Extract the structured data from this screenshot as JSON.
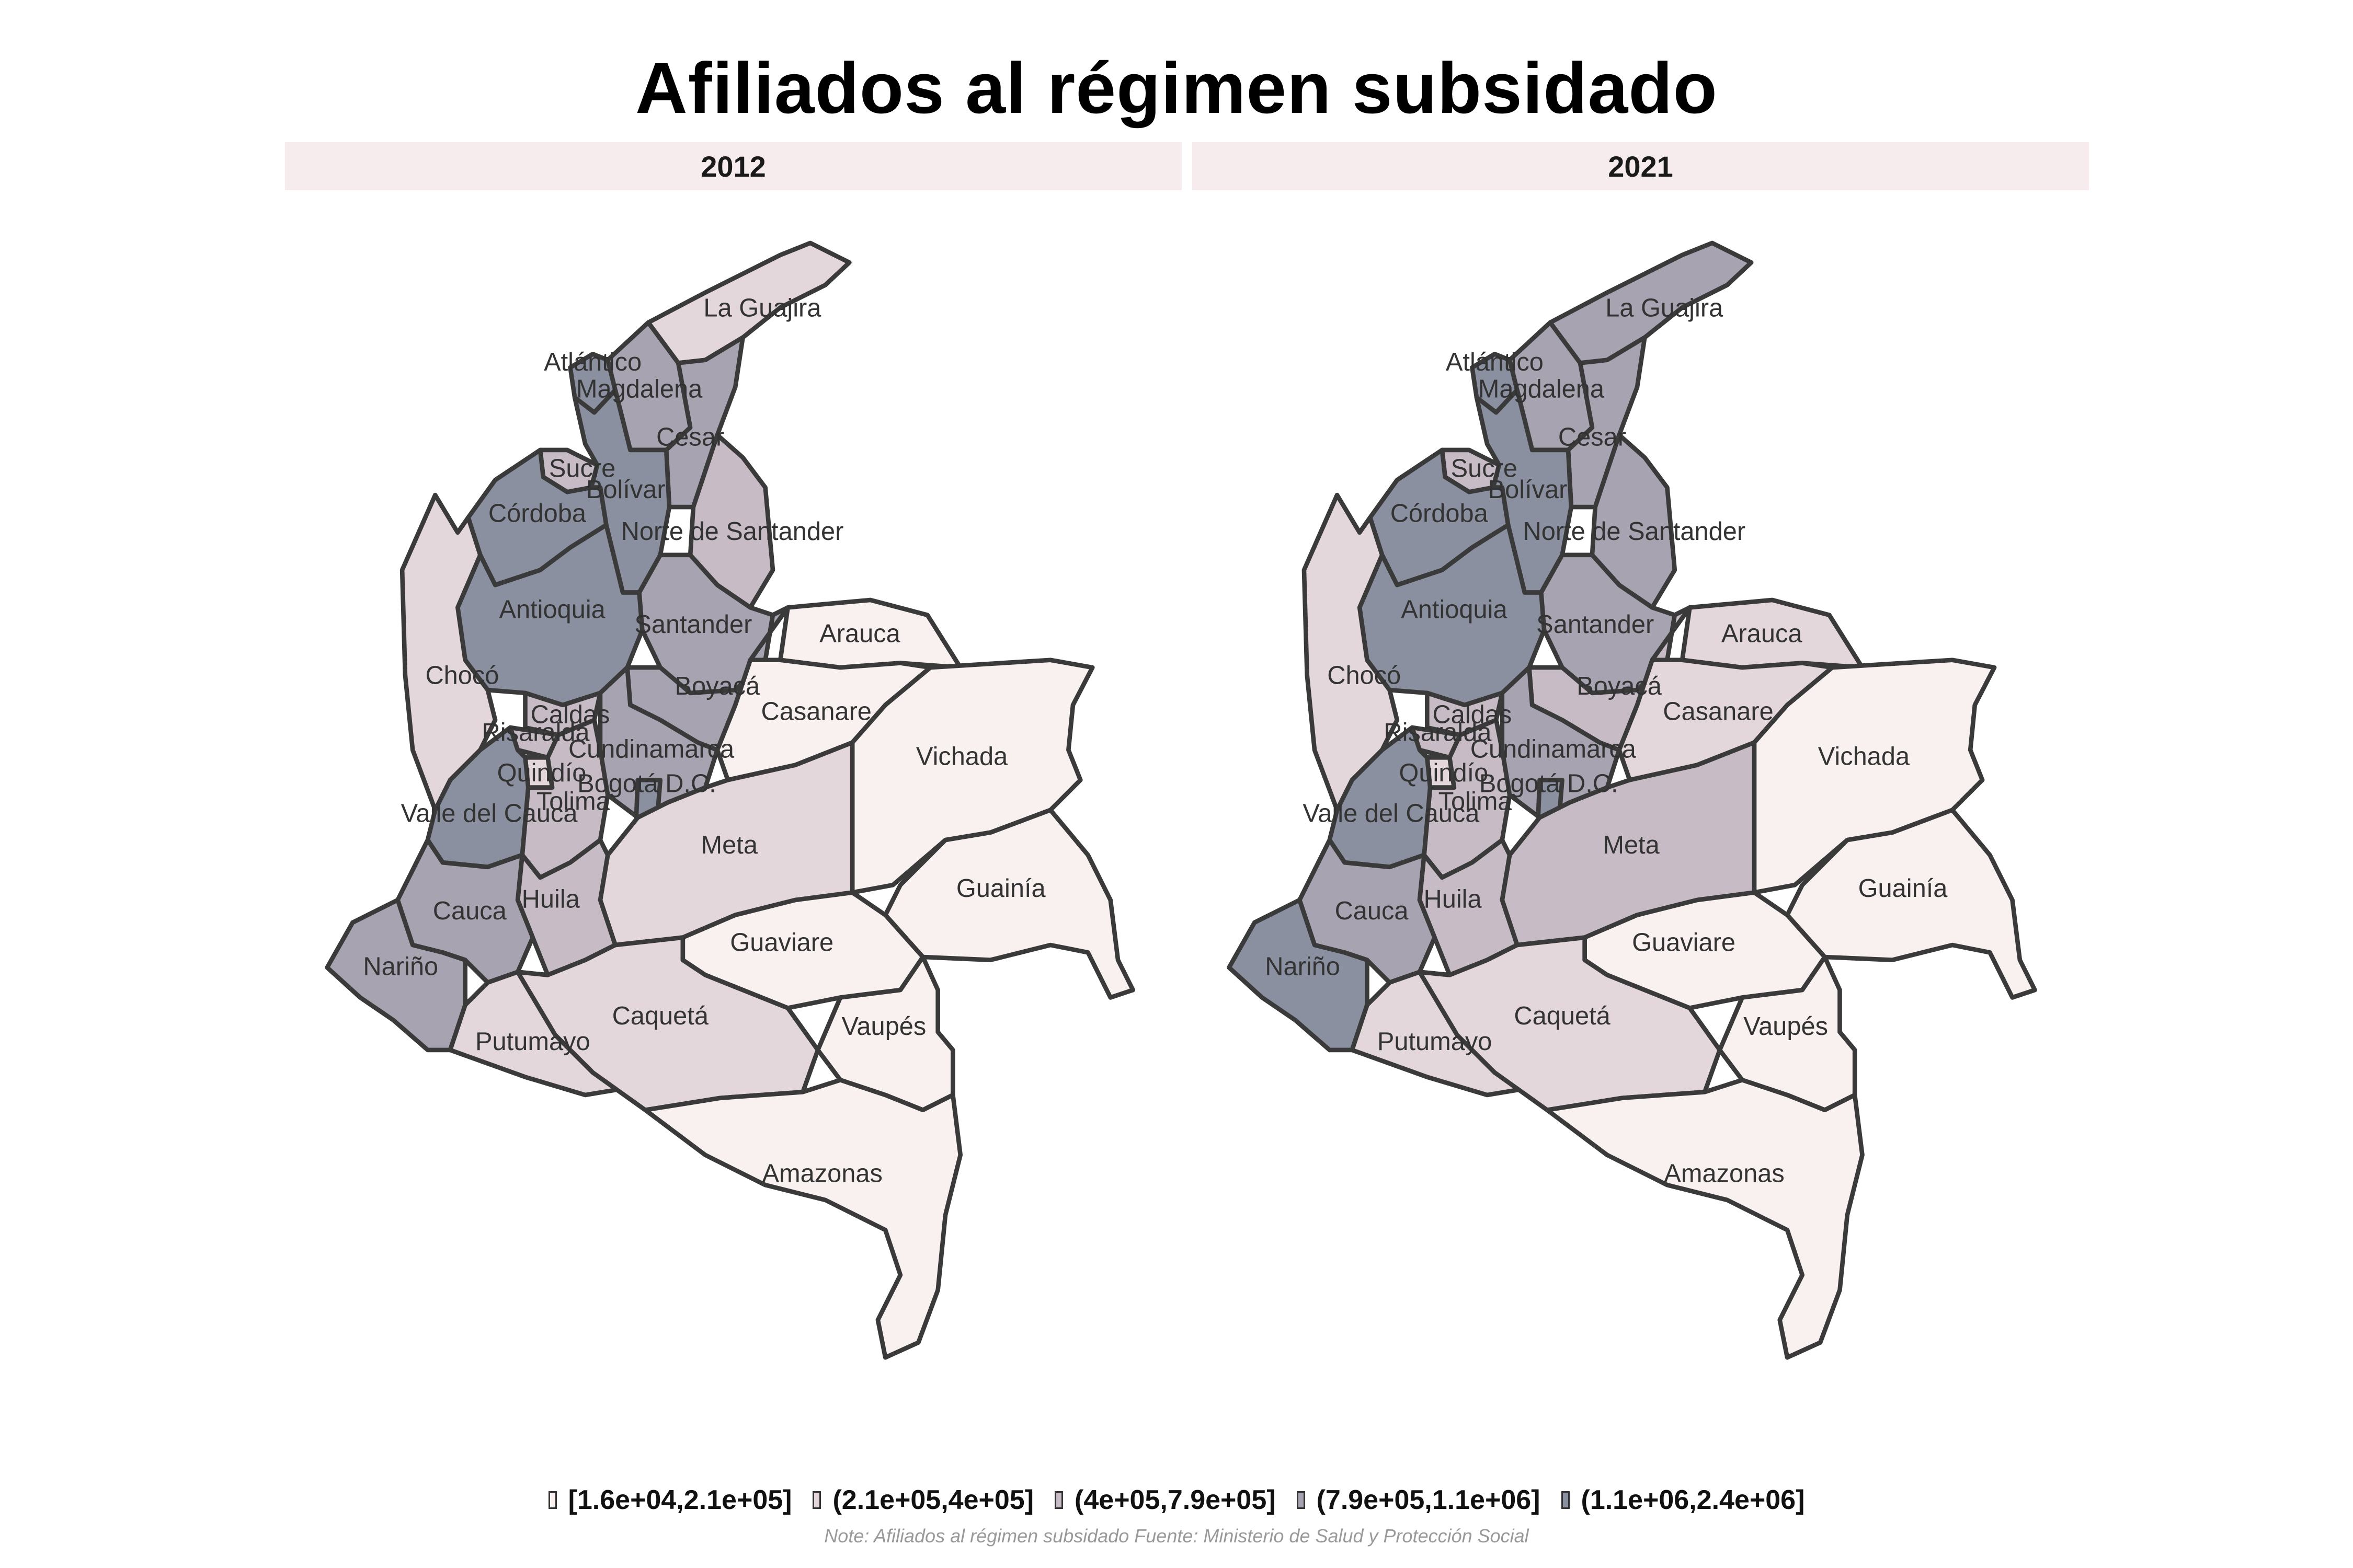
{
  "title": "Afiliados al régimen subsidado",
  "panels": [
    "2012",
    "2021"
  ],
  "legend": {
    "items": [
      {
        "label": "[1.6e+04,2.1e+05]",
        "color": "#f9f0f0"
      },
      {
        "label": "(2.1e+05,4e+05]",
        "color": "#e3d7dc"
      },
      {
        "label": "(4e+05,7.9e+05]",
        "color": "#c7bcc5"
      },
      {
        "label": "(7.9e+05,1.1e+06]",
        "color": "#a7a3b1"
      },
      {
        "label": "(1.1e+06,2.4e+06]",
        "color": "#8a909f"
      }
    ]
  },
  "note": "Note: Afiliados al régimen subsidado Fuente: Ministerio de Salud y Protección Social",
  "chart_data": {
    "type": "choropleth",
    "value": "Afiliados al régimen subsidado",
    "classes": [
      "[1.6e+04,2.1e+05]",
      "(2.1e+05,4e+05]",
      "(4e+05,7.9e+05]",
      "(7.9e+05,1.1e+06]",
      "(1.1e+06,2.4e+06]"
    ],
    "panels": [
      {
        "year": "2012",
        "departments": [
          {
            "name": "La Guajira",
            "class": 2
          },
          {
            "name": "Atlántico",
            "class": 5
          },
          {
            "name": "Magdalena",
            "class": 4
          },
          {
            "name": "Cesar",
            "class": 4
          },
          {
            "name": "Sucre",
            "class": 3
          },
          {
            "name": "Bolívar",
            "class": 5
          },
          {
            "name": "Córdoba",
            "class": 5
          },
          {
            "name": "Norte de Santander",
            "class": 3
          },
          {
            "name": "Antioquia",
            "class": 5
          },
          {
            "name": "Santander",
            "class": 4
          },
          {
            "name": "Chocó",
            "class": 2
          },
          {
            "name": "Boyacá",
            "class": 4
          },
          {
            "name": "Arauca",
            "class": 1
          },
          {
            "name": "Casanare",
            "class": 1
          },
          {
            "name": "Vichada",
            "class": 1
          },
          {
            "name": "Caldas",
            "class": 3
          },
          {
            "name": "Risaralda",
            "class": 3
          },
          {
            "name": "Cundinamarca",
            "class": 4
          },
          {
            "name": "Bogotá D.C.",
            "class": 5
          },
          {
            "name": "Quindío",
            "class": 2
          },
          {
            "name": "Tolima",
            "class": 3
          },
          {
            "name": "Valle del Cauca",
            "class": 5
          },
          {
            "name": "Meta",
            "class": 2
          },
          {
            "name": "Guainía",
            "class": 1
          },
          {
            "name": "Huila",
            "class": 3
          },
          {
            "name": "Cauca",
            "class": 4
          },
          {
            "name": "Guaviare",
            "class": 1
          },
          {
            "name": "Nariño",
            "class": 4
          },
          {
            "name": "Putumayo",
            "class": 2
          },
          {
            "name": "Caquetá",
            "class": 2
          },
          {
            "name": "Vaupés",
            "class": 1
          },
          {
            "name": "Amazonas",
            "class": 1
          }
        ]
      },
      {
        "year": "2021",
        "departments": [
          {
            "name": "La Guajira",
            "class": 4
          },
          {
            "name": "Atlántico",
            "class": 5
          },
          {
            "name": "Magdalena",
            "class": 4
          },
          {
            "name": "Cesar",
            "class": 4
          },
          {
            "name": "Sucre",
            "class": 3
          },
          {
            "name": "Bolívar",
            "class": 5
          },
          {
            "name": "Córdoba",
            "class": 5
          },
          {
            "name": "Norte de Santander",
            "class": 4
          },
          {
            "name": "Antioquia",
            "class": 5
          },
          {
            "name": "Santander",
            "class": 4
          },
          {
            "name": "Chocó",
            "class": 2
          },
          {
            "name": "Boyacá",
            "class": 3
          },
          {
            "name": "Arauca",
            "class": 2
          },
          {
            "name": "Casanare",
            "class": 2
          },
          {
            "name": "Vichada",
            "class": 1
          },
          {
            "name": "Caldas",
            "class": 3
          },
          {
            "name": "Risaralda",
            "class": 3
          },
          {
            "name": "Cundinamarca",
            "class": 4
          },
          {
            "name": "Bogotá D.C.",
            "class": 5
          },
          {
            "name": "Quindío",
            "class": 2
          },
          {
            "name": "Tolima",
            "class": 3
          },
          {
            "name": "Valle del Cauca",
            "class": 5
          },
          {
            "name": "Meta",
            "class": 3
          },
          {
            "name": "Guainía",
            "class": 1
          },
          {
            "name": "Huila",
            "class": 3
          },
          {
            "name": "Cauca",
            "class": 4
          },
          {
            "name": "Guaviare",
            "class": 1
          },
          {
            "name": "Nariño",
            "class": 5
          },
          {
            "name": "Putumayo",
            "class": 2
          },
          {
            "name": "Caquetá",
            "class": 2
          },
          {
            "name": "Vaupés",
            "class": 1
          },
          {
            "name": "Amazonas",
            "class": 1
          }
        ]
      }
    ]
  }
}
